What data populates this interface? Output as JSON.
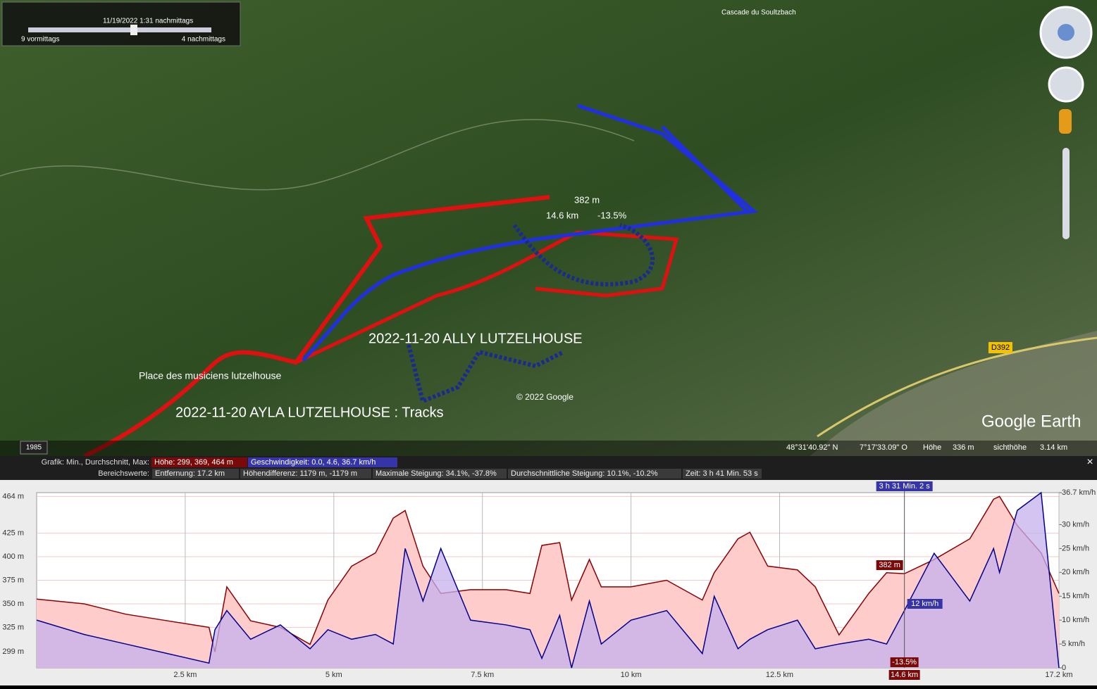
{
  "time_slider": {
    "date_time": "11/19/2022   1:31 nachmittags",
    "start": "9 vormittags",
    "end": "4 nachmittags"
  },
  "map": {
    "poi": "Cascade du Soultzbach",
    "cursor_elevation": "382 m",
    "cursor_distance": "14.6 km",
    "cursor_slope": "-13.5%",
    "track_ally": "2022-11-20 ALLY LUTZELHOUSE",
    "place": "Place des musiciens lutzelhouse",
    "track_ayla": "2022-11-20 AYLA LUTZELHOUSE : Tracks",
    "copyright": "© 2022 Google",
    "road": "D392",
    "logo": "Google Earth"
  },
  "status_bar": {
    "year": "1985",
    "lat": "48°31'40.92\" N",
    "lon": "7°17'33.09\" O",
    "height_label": "Höhe",
    "height": "336 m",
    "eye_label": "sichthöhe",
    "eye": "3.14 km"
  },
  "profile_header": {
    "graph_label": "Grafik: Min., Durchschnitt, Max:",
    "elevation": "Höhe: 299, 369, 464 m",
    "speed": "Geschwindigkeit: 0.0, 4.6, 36.7 km/h",
    "range_label": "Bereichswerte:",
    "stats": [
      "Entfernung: 17.2 km",
      "Höhendifferenz: 1179 m, -1179 m",
      "Maximale Steigung: 34.1%, -37.8%",
      "Durchschnittliche Steigung: 10.1%, -10.2%",
      "Zeit: 3 h 41 Min. 53 s"
    ],
    "close": "×"
  },
  "chart_data": {
    "type": "line",
    "x": [
      0,
      0.8,
      1.5,
      2.2,
      2.9,
      3.0,
      3.2,
      3.6,
      4.1,
      4.6,
      4.9,
      5.3,
      5.7,
      6.0,
      6.2,
      6.5,
      6.8,
      7.3,
      7.9,
      8.3,
      8.5,
      8.8,
      9.0,
      9.3,
      9.5,
      10.0,
      10.6,
      11.2,
      11.4,
      11.8,
      12.0,
      12.3,
      12.8,
      13.1,
      13.5,
      14.0,
      14.3,
      14.6,
      15.1,
      15.7,
      16.1,
      16.2,
      16.5,
      16.9,
      17.2
    ],
    "xlim": [
      0,
      17.2
    ],
    "xticks": [
      {
        "value": 2.5,
        "label": "2.5 km"
      },
      {
        "value": 5,
        "label": "5 km"
      },
      {
        "value": 7.5,
        "label": "7.5 km"
      },
      {
        "value": 10,
        "label": "10 km"
      },
      {
        "value": 12.5,
        "label": "12.5 km"
      },
      {
        "value": 17.2,
        "label": "17.2 km"
      }
    ],
    "ylim": [
      282,
      468
    ],
    "yticks": [
      {
        "value": 299,
        "label": "299 m"
      },
      {
        "value": 325,
        "label": "325 m"
      },
      {
        "value": 350,
        "label": "350 m"
      },
      {
        "value": 375,
        "label": "375 m"
      },
      {
        "value": 400,
        "label": "400 m"
      },
      {
        "value": 425,
        "label": "425 m"
      },
      {
        "value": 464,
        "label": "464 m"
      }
    ],
    "y2lim": [
      0,
      36.7
    ],
    "y2ticks": [
      {
        "value": 0,
        "label": "0"
      },
      {
        "value": 5,
        "label": "5 km/h"
      },
      {
        "value": 10,
        "label": "10 km/h"
      },
      {
        "value": 15,
        "label": "15 km/h"
      },
      {
        "value": 20,
        "label": "20 km/h"
      },
      {
        "value": 25,
        "label": "25 km/h"
      },
      {
        "value": 30,
        "label": "30 km/h"
      },
      {
        "value": 36.7,
        "label": "36.7 km/h"
      }
    ],
    "series": [
      {
        "name": "Höhe",
        "color": "#8b0000",
        "fill": "#ffcccc",
        "values": [
          355,
          350,
          339,
          332,
          325,
          299,
          368,
          332,
          325,
          307,
          354,
          390,
          404,
          441,
          449,
          390,
          361,
          365,
          365,
          361,
          412,
          415,
          354,
          397,
          368,
          368,
          375,
          354,
          383,
          419,
          426,
          390,
          386,
          368,
          317,
          361,
          383,
          382,
          397,
          419,
          461,
          464,
          433,
          404,
          361
        ]
      },
      {
        "name": "Geschwindigkeit",
        "color": "#00008b",
        "fill": "#c4b0ee",
        "axis": "y2",
        "values": [
          10,
          7,
          5,
          3,
          1,
          8,
          12,
          6,
          9,
          4,
          8,
          6,
          7,
          5,
          25,
          14,
          25,
          10,
          9,
          8,
          2,
          11,
          0,
          14,
          5,
          10,
          12,
          3,
          15,
          4,
          6,
          8,
          10,
          4,
          5,
          6,
          5,
          12,
          24,
          14,
          25,
          20,
          33,
          36.7,
          0
        ]
      }
    ],
    "cursor": 14.6,
    "annotations": {
      "time": "3 h 31 Min. 2 s",
      "elevation": "382 m",
      "speed": "12 km/h",
      "slope": "-13.5%",
      "distance": "14.6 km"
    }
  }
}
